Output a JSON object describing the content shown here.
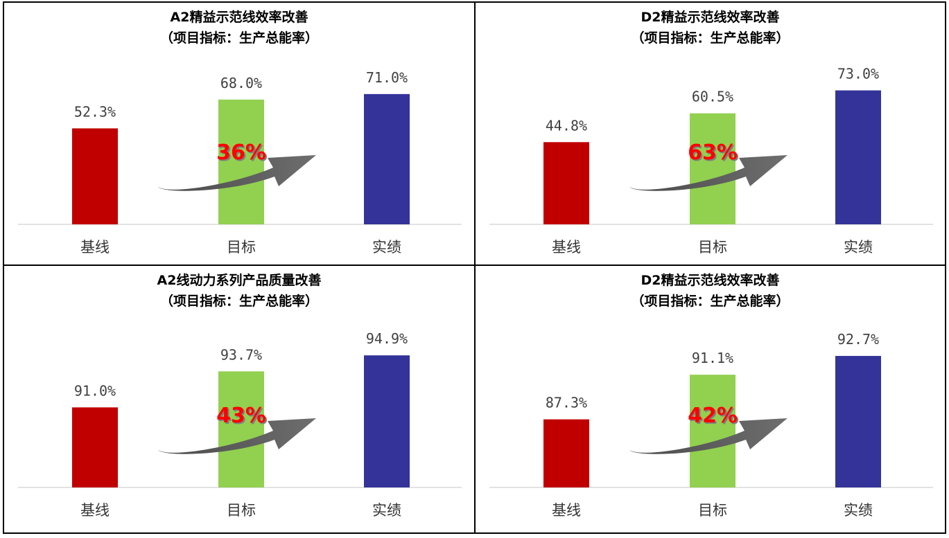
{
  "charts": [
    {
      "title": "A2精益示范线效率改善",
      "subtitle": "（项目指标：生产总能率）",
      "chart_data": {
        "type": "bar",
        "categories": [
          "基线",
          "目标",
          "实绩"
        ],
        "values": [
          52.3,
          68.0,
          71.0
        ],
        "value_labels": [
          "52.3%",
          "68.0%",
          "71.0%"
        ],
        "colors": [
          "#c00000",
          "#92d050",
          "#333399"
        ],
        "ylim": [
          0,
          80
        ],
        "annotation": "36%"
      }
    },
    {
      "title": "D2精益示范线效率改善",
      "subtitle": "（项目指标：生产总能率）",
      "chart_data": {
        "type": "bar",
        "categories": [
          "基线",
          "目标",
          "实绩"
        ],
        "values": [
          44.8,
          60.5,
          73.0
        ],
        "value_labels": [
          "44.8%",
          "60.5%",
          "73.0%"
        ],
        "colors": [
          "#c00000",
          "#92d050",
          "#333399"
        ],
        "ylim": [
          0,
          80
        ],
        "annotation": "63%"
      }
    },
    {
      "title": "A2线动力系列产品质量改善",
      "subtitle": "（项目指标：生产总能率）",
      "chart_data": {
        "type": "bar",
        "categories": [
          "基线",
          "目标",
          "实绩"
        ],
        "values": [
          91.0,
          93.7,
          94.9
        ],
        "value_labels": [
          "91.0%",
          "93.7%",
          "94.9%"
        ],
        "colors": [
          "#c00000",
          "#92d050",
          "#333399"
        ],
        "ylim": [
          85,
          96
        ],
        "annotation": "43%"
      }
    },
    {
      "title": "D2精益示范线效率改善",
      "subtitle": "（项目指标：生产总能率）",
      "chart_data": {
        "type": "bar",
        "categories": [
          "基线",
          "目标",
          "实绩"
        ],
        "values": [
          87.3,
          91.1,
          92.7
        ],
        "value_labels": [
          "87.3%",
          "91.1%",
          "92.7%"
        ],
        "colors": [
          "#c00000",
          "#92d050",
          "#333399"
        ],
        "ylim": [
          81.5,
          94
        ],
        "annotation": "42%"
      }
    }
  ]
}
